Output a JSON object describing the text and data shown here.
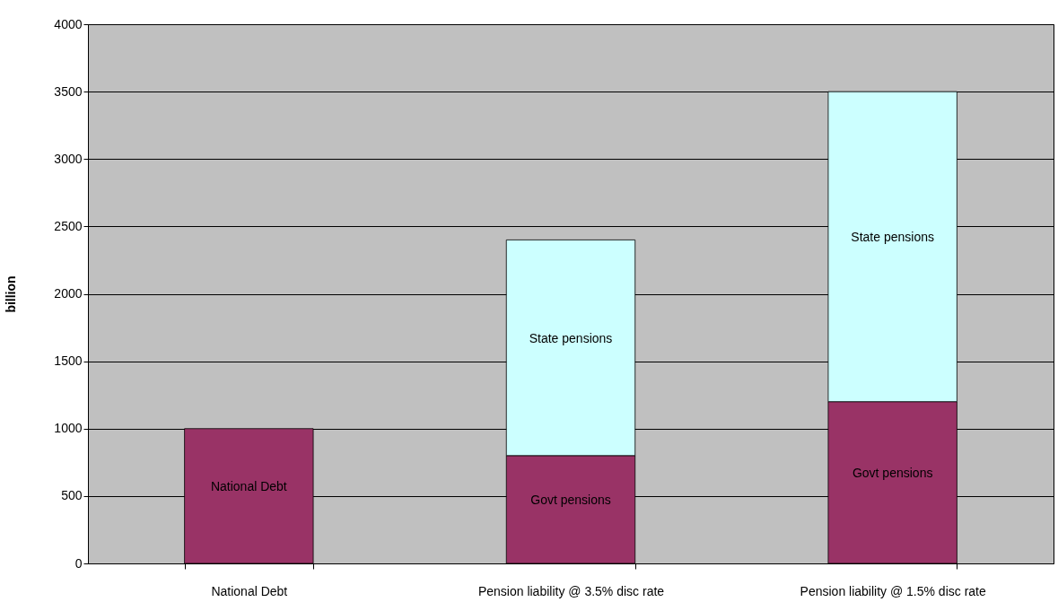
{
  "chart_data": {
    "type": "bar",
    "stacked": true,
    "ylabel": "billion",
    "categories": [
      "National Debt",
      "Pension liability @ 3.5% disc rate",
      "Pension liability @ 1.5% disc rate"
    ],
    "series": [
      {
        "name": "National Debt",
        "color": "#993366",
        "values": [
          1000,
          null,
          null
        ]
      },
      {
        "name": "Govt  pensions",
        "color": "#993366",
        "values": [
          null,
          800,
          1200
        ]
      },
      {
        "name": "State pensions",
        "color": "#ccffff",
        "values": [
          null,
          1600,
          2300
        ]
      }
    ],
    "ylim": [
      0,
      4000
    ],
    "yticks": [
      0,
      500,
      1000,
      1500,
      2000,
      2500,
      3000,
      3500,
      4000
    ],
    "grid": "y",
    "legend": false
  }
}
